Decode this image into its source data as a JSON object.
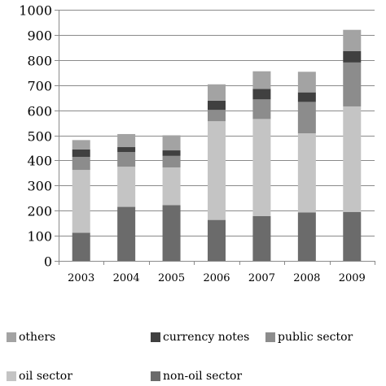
{
  "chart_data": {
    "type": "bar",
    "stacked": true,
    "categories": [
      "2003",
      "2004",
      "2005",
      "2006",
      "2007",
      "2008",
      "2009"
    ],
    "series": [
      {
        "name": "non-oil sector",
        "color": "#6b6b6b",
        "values": [
          112,
          215,
          222,
          163,
          178,
          193,
          195
        ]
      },
      {
        "name": "oil sector",
        "color": "#c4c4c4",
        "values": [
          250,
          160,
          150,
          393,
          387,
          315,
          420
        ]
      },
      {
        "name": "public sector",
        "color": "#8c8c8c",
        "values": [
          52,
          58,
          46,
          45,
          78,
          125,
          175
        ]
      },
      {
        "name": "currency notes",
        "color": "#404040",
        "values": [
          30,
          20,
          22,
          37,
          42,
          38,
          45
        ]
      },
      {
        "name": "others",
        "color": "#a3a3a3",
        "values": [
          37,
          52,
          60,
          65,
          70,
          82,
          85
        ]
      }
    ],
    "legend_order": [
      "others",
      "currency notes",
      "public sector",
      "oil sector",
      "non-oil sector"
    ],
    "legend_position": "bottom",
    "ylim": [
      0,
      1000
    ],
    "yticks": [
      0,
      100,
      200,
      300,
      400,
      500,
      600,
      700,
      800,
      900,
      1000
    ],
    "gridlines": true
  }
}
